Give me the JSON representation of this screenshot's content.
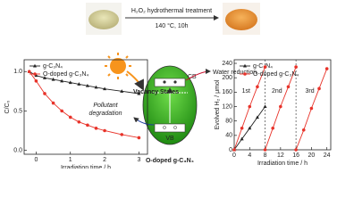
{
  "top": {
    "process": "H₂O₂ hydrothermal treatment",
    "condition": "140 °C, 10h"
  },
  "diagram": {
    "title": "O-doped g-C₃N₄",
    "water": "Water reduction",
    "pollutant": "Pollutant degradation",
    "vacancy": "Vacancy States",
    "cb": "CB",
    "vb": "VB"
  },
  "chart_data": [
    {
      "type": "line",
      "x_label": "Irradiation time / h",
      "y_label": "C/C₀",
      "xlim": [
        -0.35,
        3.25
      ],
      "ylim": [
        -0.05,
        1.15
      ],
      "xticks": [
        0,
        1,
        2,
        3
      ],
      "yticks": [
        {
          "value": 0,
          "label": "0.0"
        },
        0.5,
        {
          "value": 1,
          "label": "1.0"
        }
      ],
      "legend": "upper left",
      "series": [
        {
          "name": "g-C₃N₄",
          "color": "#222222",
          "marker": "triangle",
          "x": [
            -0.2,
            0,
            0.25,
            0.5,
            0.75,
            1,
            1.25,
            1.5,
            1.75,
            2,
            2.5,
            3
          ],
          "values": [
            1.0,
            0.95,
            0.92,
            0.9,
            0.88,
            0.86,
            0.84,
            0.82,
            0.8,
            0.78,
            0.75,
            0.72
          ]
        },
        {
          "name": "O-doped g-C₃N₄",
          "color": "#e8332a",
          "marker": "circle",
          "x": [
            -0.2,
            0,
            0.25,
            0.5,
            0.75,
            1,
            1.25,
            1.5,
            1.75,
            2,
            2.5,
            3
          ],
          "values": [
            1.0,
            0.88,
            0.72,
            0.6,
            0.5,
            0.42,
            0.36,
            0.32,
            0.28,
            0.25,
            0.2,
            0.16
          ]
        }
      ]
    },
    {
      "type": "line",
      "x_label": "Irradiation time / h",
      "y_label": "Evolved H₂ / μmol",
      "xlim": [
        0,
        25
      ],
      "ylim": [
        0,
        250
      ],
      "xticks": [
        0,
        4,
        8,
        12,
        16,
        20,
        24
      ],
      "yticks": [
        0,
        40,
        80,
        120,
        160,
        200,
        240
      ],
      "dividers": [
        8,
        16
      ],
      "cycle_labels": [
        "1st",
        "2nd",
        "3rd"
      ],
      "legend": "upper left",
      "series": [
        {
          "name": "g-C₃N₄",
          "color": "#222222",
          "marker": "triangle",
          "x": [
            0,
            2,
            4,
            6,
            8
          ],
          "values": [
            0,
            30,
            60,
            90,
            120
          ]
        },
        {
          "name": "O-doped g-C₃N₄",
          "color": "#e8332a",
          "marker": "circle",
          "x": [
            0,
            2,
            4,
            6,
            8,
            8,
            8,
            10,
            12,
            14,
            16,
            16,
            16,
            18,
            20,
            22,
            24
          ],
          "values": [
            0,
            60,
            120,
            175,
            230,
            null,
            0,
            60,
            120,
            175,
            230,
            null,
            0,
            55,
            115,
            170,
            225
          ]
        }
      ]
    }
  ]
}
